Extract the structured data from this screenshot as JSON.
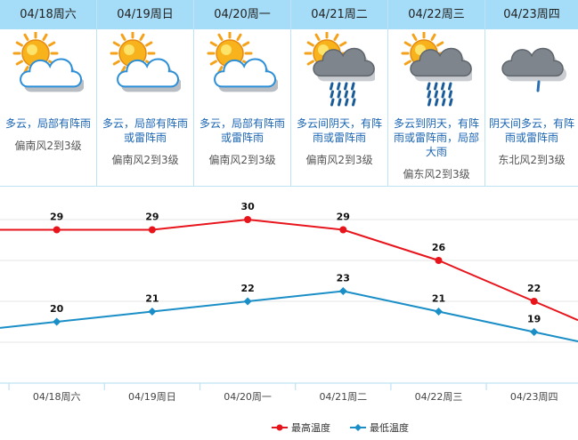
{
  "days": [
    {
      "date": "04/18周六",
      "desc": "多云，局部有阵雨",
      "wind": "偏南风2到3级",
      "icon": "sun-cloud-icon"
    },
    {
      "date": "04/19周日",
      "desc": "多云，局部有阵雨或雷阵雨",
      "wind": "偏南风2到3级",
      "icon": "sun-cloud-icon"
    },
    {
      "date": "04/20周一",
      "desc": "多云，局部有阵雨或雷阵雨",
      "wind": "偏南风2到3级",
      "icon": "sun-cloud-icon"
    },
    {
      "date": "04/21周二",
      "desc": "多云间阴天，有阵雨或雷阵雨",
      "wind": "偏南风2到3级",
      "icon": "sun-rain-icon"
    },
    {
      "date": "04/22周三",
      "desc": "多云到阴天，有阵雨或雷阵雨，局部大雨",
      "wind": "偏东风2到3级",
      "icon": "sun-rain-icon"
    },
    {
      "date": "04/23周四",
      "desc": "阴天间多云，有阵雨或雷阵雨",
      "wind": "东北风2到3级",
      "icon": "cloud-rain-icon"
    }
  ],
  "chart_data": {
    "type": "line",
    "categories": [
      "04/18周六",
      "04/19周日",
      "04/20周一",
      "04/21周二",
      "04/22周三",
      "04/23周四"
    ],
    "series": [
      {
        "name": "最高温度",
        "values": [
          29,
          29,
          30,
          29,
          26,
          22
        ],
        "color": "#e8141c"
      },
      {
        "name": "最低温度",
        "values": [
          20,
          21,
          22,
          23,
          21,
          19
        ],
        "color": "#1a8ec6"
      }
    ],
    "ylim": [
      14,
      32
    ],
    "grid": true,
    "legend": "bottom-center"
  }
}
